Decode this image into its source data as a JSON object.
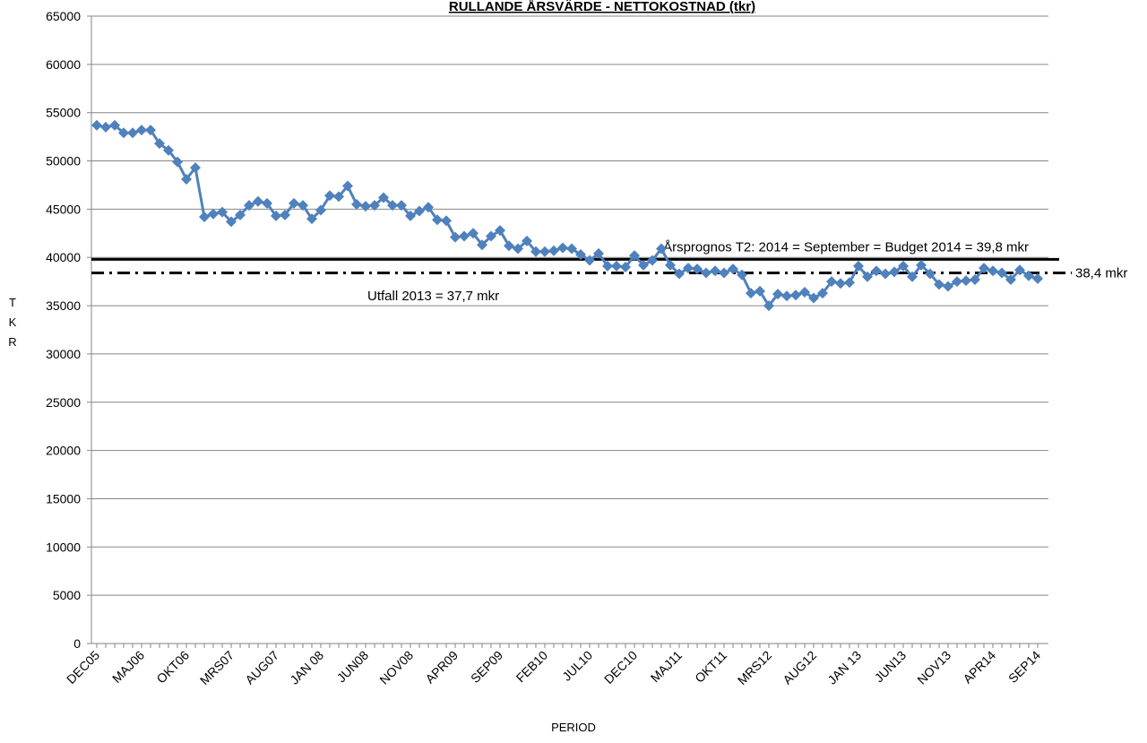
{
  "chart_data": {
    "type": "line",
    "title": "RULLANDE ÅRSVÄRDE - NETTOKOSTNAD (tkr)",
    "x_label": "PERIOD",
    "y_label": "TKR",
    "categories": [
      "DEC05",
      null,
      null,
      null,
      null,
      "MAJ06",
      null,
      null,
      null,
      null,
      "OKT06",
      null,
      null,
      null,
      null,
      "MRS07",
      null,
      null,
      null,
      null,
      "AUG07",
      null,
      null,
      null,
      null,
      "JAN 08",
      null,
      null,
      null,
      null,
      "JUN08",
      null,
      null,
      null,
      null,
      "NOV08",
      null,
      null,
      null,
      null,
      "APR09",
      null,
      null,
      null,
      null,
      "SEP09",
      null,
      null,
      null,
      null,
      "FEB10",
      null,
      null,
      null,
      null,
      "JUL10",
      null,
      null,
      null,
      null,
      "DEC10",
      null,
      null,
      null,
      null,
      "MAJ11",
      null,
      null,
      null,
      null,
      "OKT11",
      null,
      null,
      null,
      null,
      "MRS12",
      null,
      null,
      null,
      null,
      "AUG12",
      null,
      null,
      null,
      null,
      "JAN 13",
      null,
      null,
      null,
      null,
      "JUN13",
      null,
      null,
      null,
      null,
      "NOV13",
      null,
      null,
      null,
      null,
      "APR14",
      null,
      null,
      null,
      null,
      "SEP14"
    ],
    "series": [
      {
        "color": "#4f81bd",
        "values": [
          53700,
          53500,
          53700,
          52900,
          52900,
          53200,
          53200,
          51800,
          51100,
          49900,
          48100,
          49300,
          44200,
          44500,
          44700,
          43700,
          44400,
          45400,
          45800,
          45600,
          44300,
          44400,
          45600,
          45400,
          44000,
          44900,
          46400,
          46300,
          47400,
          45500,
          45300,
          45400,
          46200,
          45400,
          45400,
          44300,
          44800,
          45200,
          43900,
          43800,
          42100,
          42200,
          42500,
          41300,
          42200,
          42800,
          41200,
          40900,
          41700,
          40600,
          40600,
          40700,
          41000,
          40900,
          40300,
          39700,
          40400,
          39100,
          39100,
          39000,
          40200,
          39200,
          39700,
          40900,
          39200,
          38300,
          38900,
          38800,
          38400,
          38600,
          38400,
          38800,
          38200,
          36300,
          36500,
          35000,
          36200,
          36000,
          36100,
          36400,
          35800,
          36300,
          37500,
          37300,
          37400,
          39100,
          38000,
          38600,
          38300,
          38500,
          39100,
          38000,
          39200,
          38300,
          37200,
          37000,
          37500,
          37600,
          37700,
          38900,
          38600,
          38400,
          37700,
          38700,
          38100,
          37800
        ]
      }
    ],
    "reference_lines": [
      {
        "value": 39800,
        "label": "Årsprognos T2: 2014 = September = Budget 2014 = 39,8 mkr",
        "style": "solid",
        "color": "#000000"
      },
      {
        "value": 38400,
        "label": "38,4 mkr",
        "style": "dash-dot",
        "color": "#000000"
      }
    ],
    "annotations": [
      "Utfall 2013 = 37,7 mkr"
    ],
    "ylim": [
      0,
      65000
    ],
    "yticks": [
      0,
      5000,
      10000,
      15000,
      20000,
      25000,
      30000,
      35000,
      40000,
      45000,
      50000,
      55000,
      60000,
      65000
    ],
    "grid": true
  }
}
